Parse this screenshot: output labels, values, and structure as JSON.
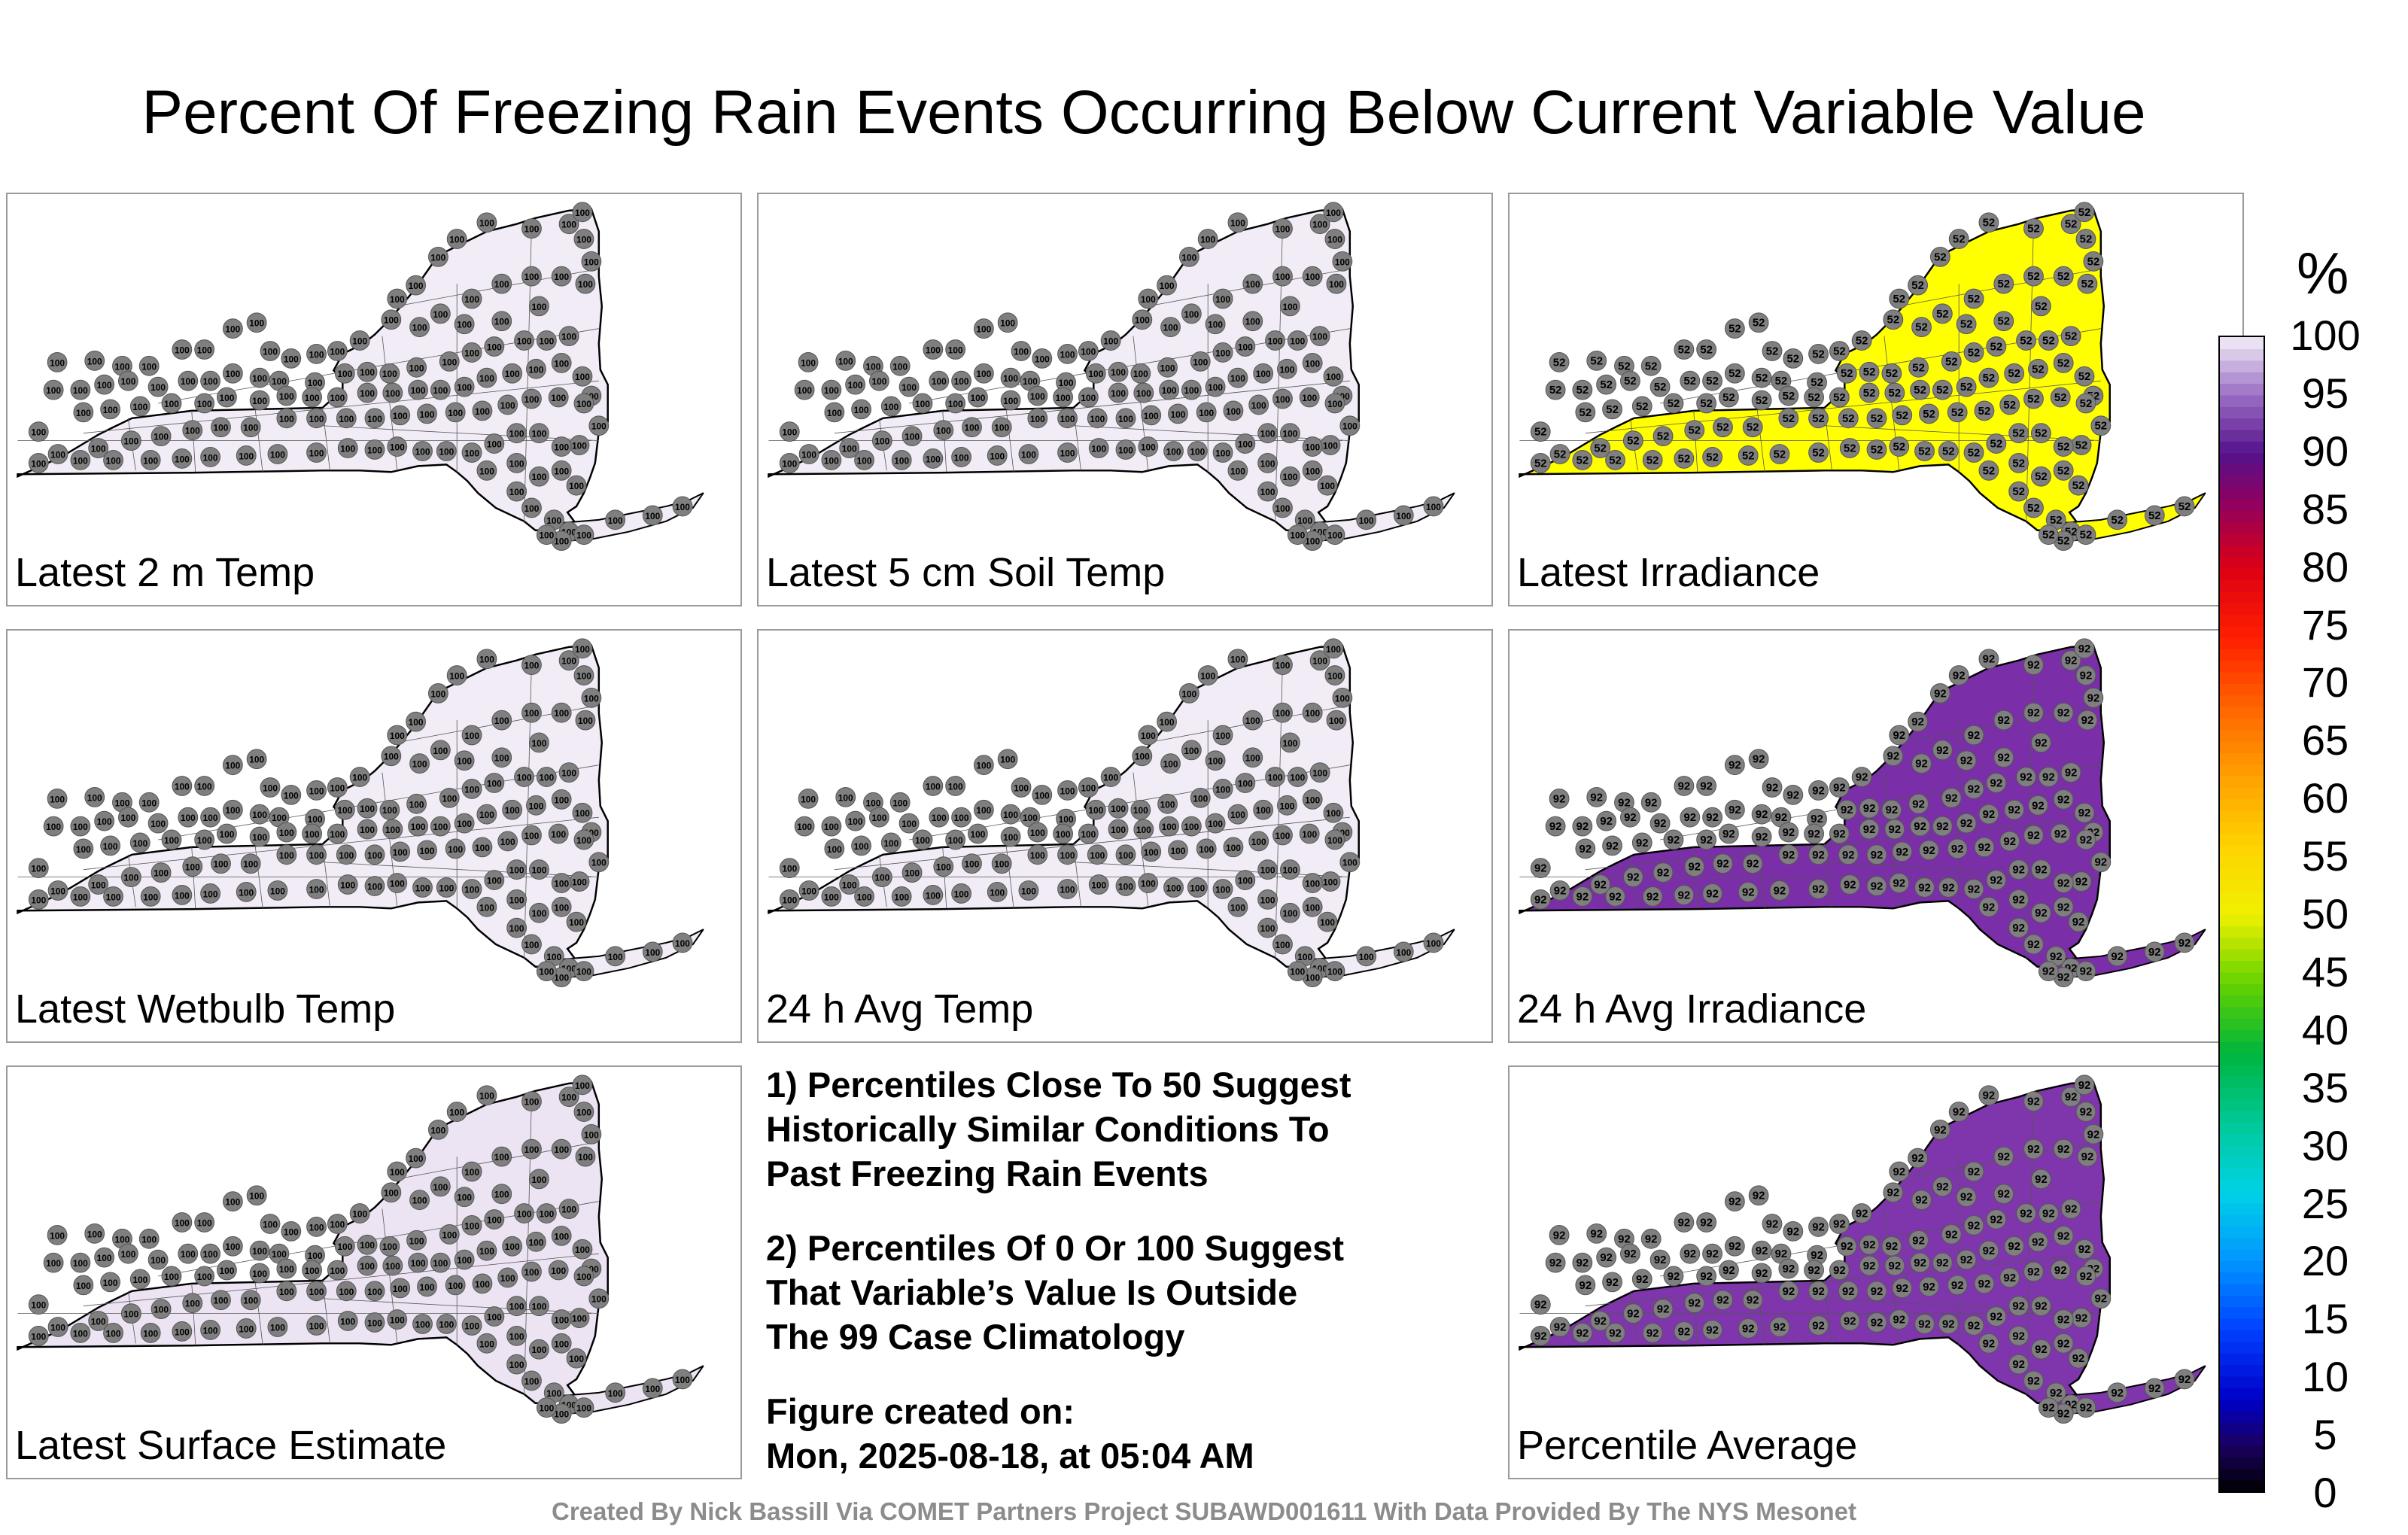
{
  "title": "Percent Of Freezing Rain Events Occurring Below Current Variable Value",
  "panels": [
    {
      "label": "Latest 2 m Temp",
      "fill": "#f1ecf6",
      "value": 100
    },
    {
      "label": "Latest 5 cm Soil Temp",
      "fill": "#f1ecf6",
      "value": 100
    },
    {
      "label": "Latest Irradiance",
      "fill": "#ffff00",
      "value": 52
    },
    {
      "label": "Latest Wetbulb Temp",
      "fill": "#f1ecf6",
      "value": 100
    },
    {
      "label": "24 h Avg Temp",
      "fill": "#f1ecf6",
      "value": 100
    },
    {
      "label": "24 h Avg Irradiance",
      "fill": "#7a2fa8",
      "value": 92
    },
    {
      "label": "Latest Surface Estimate",
      "fill": "#ece3f3",
      "value": 100
    },
    {
      "label": "Percentile Average",
      "fill": "#7f36ac",
      "value": 92
    }
  ],
  "notes": {
    "note1": "1) Percentiles Close To 50 Suggest\nHistorically Similar Conditions To\nPast Freezing Rain Events",
    "note2": "2) Percentiles Of 0 Or 100 Suggest\nThat Variable’s Value Is Outside\nThe 99 Case Climatology",
    "figure_created": "Figure created on:\nMon, 2025-08-18, at 05:04 AM"
  },
  "colorbar": {
    "unit": "%",
    "min": 0,
    "max": 100,
    "ticks": [
      "0",
      "5",
      "10",
      "15",
      "20",
      "25",
      "30",
      "35",
      "40",
      "45",
      "50",
      "55",
      "60",
      "65",
      "70",
      "75",
      "80",
      "85",
      "90",
      "95",
      "100"
    ]
  },
  "credit": "Created By Nick Bassill Via COMET Partners Project SUBAWD001611 With Data Provided By The NYS Mesonet"
}
